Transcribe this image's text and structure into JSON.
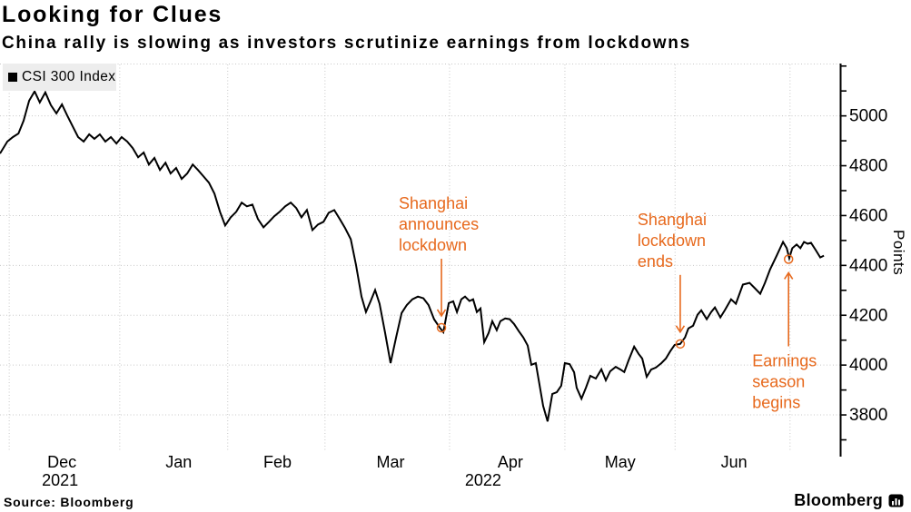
{
  "header": {
    "title": "Looking for Clues",
    "subtitle": "China rally is slowing as investors scrutinize earnings from lockdowns"
  },
  "legend": {
    "label": "CSI 300 Index"
  },
  "footer": {
    "source": "Source: Bloomberg",
    "brand": "Bloomberg",
    "brand_icon": "bloomberg-bars-bubble"
  },
  "chart_data": {
    "type": "line",
    "title": "Looking for Clues",
    "subtitle": "China rally is slowing as investors scrutinize earnings from lockdowns",
    "ylabel": "Points",
    "ylim": [
      3680,
      5210
    ],
    "yticks_labeled": [
      3800,
      4000,
      4200,
      4400,
      4600,
      4800,
      5000
    ],
    "ytick_minor_step": 100,
    "grid": "dotted",
    "legend_position": "top-left",
    "x_axis": {
      "days_total": 228,
      "x_is_days_from": "2021-11-29",
      "month_labels": [
        {
          "label": "Dec",
          "day": 16.8
        },
        {
          "label": "Jan",
          "day": 48.5
        },
        {
          "label": "Feb",
          "day": 75.3
        },
        {
          "label": "Mar",
          "day": 106.0
        },
        {
          "label": "Apr",
          "day": 138.5
        },
        {
          "label": "May",
          "day": 168.3
        },
        {
          "label": "Jun",
          "day": 199.2
        }
      ],
      "year_labels": [
        {
          "label": "2021",
          "day": 16.3
        },
        {
          "label": "2022",
          "day": 131.1
        }
      ],
      "gridline_days": [
        2.5,
        32.5,
        61.8,
        88.2,
        122,
        153.3,
        183.2,
        214.4
      ]
    },
    "series": [
      {
        "name": "CSI 300 Index",
        "color": "#000000",
        "points": [
          [
            0,
            4849
          ],
          [
            2,
            4897
          ],
          [
            3.5,
            4915
          ],
          [
            5,
            4929
          ],
          [
            6.4,
            4981
          ],
          [
            7.9,
            5061
          ],
          [
            9.4,
            5098
          ],
          [
            10.8,
            5054
          ],
          [
            12.3,
            5094
          ],
          [
            13.8,
            5043
          ],
          [
            15.3,
            5010
          ],
          [
            16.8,
            5046
          ],
          [
            18.2,
            5003
          ],
          [
            19.7,
            4959
          ],
          [
            21.2,
            4915
          ],
          [
            22.7,
            4897
          ],
          [
            24.2,
            4926
          ],
          [
            25.6,
            4908
          ],
          [
            27.1,
            4926
          ],
          [
            28.6,
            4897
          ],
          [
            30.1,
            4915
          ],
          [
            31.6,
            4889
          ],
          [
            33,
            4915
          ],
          [
            34.5,
            4897
          ],
          [
            36,
            4871
          ],
          [
            37.5,
            4834
          ],
          [
            39,
            4853
          ],
          [
            40.4,
            4805
          ],
          [
            41.9,
            4831
          ],
          [
            43.4,
            4783
          ],
          [
            44.9,
            4812
          ],
          [
            46.3,
            4769
          ],
          [
            47.8,
            4791
          ],
          [
            49.3,
            4747
          ],
          [
            50.8,
            4769
          ],
          [
            52.3,
            4805
          ],
          [
            53.7,
            4783
          ],
          [
            55.2,
            4758
          ],
          [
            56.7,
            4732
          ],
          [
            58.2,
            4688
          ],
          [
            59.7,
            4615
          ],
          [
            61.1,
            4560
          ],
          [
            62.6,
            4593
          ],
          [
            64.1,
            4615
          ],
          [
            65.6,
            4652
          ],
          [
            67,
            4637
          ],
          [
            68.5,
            4644
          ],
          [
            70,
            4586
          ],
          [
            71.5,
            4553
          ],
          [
            73,
            4575
          ],
          [
            74.4,
            4597
          ],
          [
            75.9,
            4615
          ],
          [
            77.4,
            4637
          ],
          [
            78.9,
            4652
          ],
          [
            80.4,
            4630
          ],
          [
            81.8,
            4593
          ],
          [
            83.3,
            4622
          ],
          [
            84.8,
            4542
          ],
          [
            86.3,
            4564
          ],
          [
            87.8,
            4575
          ],
          [
            89.2,
            4611
          ],
          [
            90.7,
            4622
          ],
          [
            92.2,
            4586
          ],
          [
            93.7,
            4549
          ],
          [
            95.2,
            4505
          ],
          [
            96.6,
            4403
          ],
          [
            98.1,
            4275
          ],
          [
            99.3,
            4213
          ],
          [
            100.6,
            4257
          ],
          [
            101.8,
            4301
          ],
          [
            103,
            4246
          ],
          [
            104.5,
            4129
          ],
          [
            106,
            4008
          ],
          [
            107.5,
            4111
          ],
          [
            109,
            4209
          ],
          [
            110.4,
            4241
          ],
          [
            111.9,
            4264
          ],
          [
            113.4,
            4275
          ],
          [
            114.9,
            4268
          ],
          [
            116.3,
            4241
          ],
          [
            117.8,
            4184
          ],
          [
            119.3,
            4151
          ],
          [
            120.3,
            4132
          ],
          [
            121.8,
            4249
          ],
          [
            123,
            4256
          ],
          [
            124,
            4213
          ],
          [
            125.2,
            4264
          ],
          [
            126.2,
            4275
          ],
          [
            127.4,
            4257
          ],
          [
            128.4,
            4264
          ],
          [
            129.4,
            4213
          ],
          [
            130.4,
            4227
          ],
          [
            131.4,
            4092
          ],
          [
            132.6,
            4129
          ],
          [
            133.6,
            4176
          ],
          [
            134.8,
            4140
          ],
          [
            135.8,
            4176
          ],
          [
            137.1,
            4187
          ],
          [
            138.3,
            4184
          ],
          [
            139.5,
            4165
          ],
          [
            140.8,
            4136
          ],
          [
            142,
            4111
          ],
          [
            143.2,
            4078
          ],
          [
            144.2,
            4001
          ],
          [
            145.4,
            4008
          ],
          [
            147.4,
            3836
          ],
          [
            148.6,
            3774
          ],
          [
            149.9,
            3884
          ],
          [
            151.1,
            3891
          ],
          [
            152.3,
            3917
          ],
          [
            153.3,
            4008
          ],
          [
            154.6,
            4004
          ],
          [
            155.8,
            3971
          ],
          [
            156.5,
            3909
          ],
          [
            157.8,
            3865
          ],
          [
            159,
            3909
          ],
          [
            160.2,
            3957
          ],
          [
            161.7,
            3946
          ],
          [
            163.2,
            3983
          ],
          [
            164.4,
            3939
          ],
          [
            165.6,
            3975
          ],
          [
            167.1,
            3993
          ],
          [
            168.4,
            3982
          ],
          [
            169.4,
            3972
          ],
          [
            170.6,
            4019
          ],
          [
            172.1,
            4074
          ],
          [
            173.3,
            4045
          ],
          [
            174.3,
            4026
          ],
          [
            175.5,
            3953
          ],
          [
            176.7,
            3982
          ],
          [
            178,
            3990
          ],
          [
            179.5,
            4008
          ],
          [
            180.7,
            4026
          ],
          [
            181.9,
            4056
          ],
          [
            183.1,
            4081
          ],
          [
            184.6,
            4085
          ],
          [
            185.9,
            4111
          ],
          [
            186.8,
            4147
          ],
          [
            188.1,
            4158
          ],
          [
            189.3,
            4202
          ],
          [
            190.3,
            4220
          ],
          [
            191.8,
            4184
          ],
          [
            193,
            4213
          ],
          [
            194,
            4231
          ],
          [
            195.5,
            4191
          ],
          [
            196.7,
            4220
          ],
          [
            198.4,
            4264
          ],
          [
            199.7,
            4246
          ],
          [
            200.7,
            4286
          ],
          [
            201.6,
            4323
          ],
          [
            203.4,
            4330
          ],
          [
            204.6,
            4312
          ],
          [
            206.3,
            4286
          ],
          [
            207.6,
            4330
          ],
          [
            209,
            4384
          ],
          [
            210.8,
            4440
          ],
          [
            212.5,
            4494
          ],
          [
            213.5,
            4469
          ],
          [
            214.2,
            4429
          ],
          [
            215,
            4469
          ],
          [
            216.2,
            4484
          ],
          [
            217.2,
            4469
          ],
          [
            218.2,
            4494
          ],
          [
            219.2,
            4487
          ],
          [
            220.1,
            4491
          ],
          [
            221.4,
            4461
          ],
          [
            222.6,
            4432
          ],
          [
            223.6,
            4439
          ]
        ]
      }
    ],
    "annotations": [
      {
        "lines": [
          "Shanghai",
          "announces",
          "lockdown"
        ],
        "day": 119.8,
        "value": 4150,
        "side": "above"
      },
      {
        "lines": [
          "Shanghai",
          "lockdown",
          "ends"
        ],
        "day": 184.6,
        "value": 4085,
        "side": "above"
      },
      {
        "lines": [
          "Earnings",
          "season",
          "begins"
        ],
        "day": 214.0,
        "value": 4425,
        "side": "below"
      }
    ],
    "colors": {
      "line": "#000000",
      "annotation": "#E7691D",
      "grid": "#c8c8c8",
      "axis": "#000000",
      "legend_bg": "#ededed"
    }
  }
}
